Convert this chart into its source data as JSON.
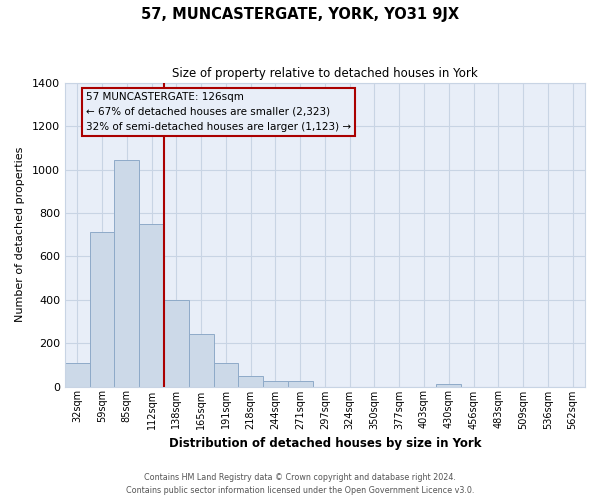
{
  "title": "57, MUNCASTERGATE, YORK, YO31 9JX",
  "subtitle": "Size of property relative to detached houses in York",
  "xlabel": "Distribution of detached houses by size in York",
  "ylabel": "Number of detached properties",
  "bar_color": "#ccd9e8",
  "bar_edge_color": "#8eaac8",
  "vline_color": "#aa0000",
  "categories": [
    "32sqm",
    "59sqm",
    "85sqm",
    "112sqm",
    "138sqm",
    "165sqm",
    "191sqm",
    "218sqm",
    "244sqm",
    "271sqm",
    "297sqm",
    "324sqm",
    "350sqm",
    "377sqm",
    "403sqm",
    "430sqm",
    "456sqm",
    "483sqm",
    "509sqm",
    "536sqm",
    "562sqm"
  ],
  "values": [
    107,
    715,
    1047,
    750,
    400,
    244,
    110,
    48,
    27,
    25,
    0,
    0,
    0,
    0,
    0,
    10,
    0,
    0,
    0,
    0,
    0
  ],
  "ylim": [
    0,
    1400
  ],
  "yticks": [
    0,
    200,
    400,
    600,
    800,
    1000,
    1200,
    1400
  ],
  "annotation_title": "57 MUNCASTERGATE: 126sqm",
  "annotation_line1": "← 67% of detached houses are smaller (2,323)",
  "annotation_line2": "32% of semi-detached houses are larger (1,123) →",
  "footer1": "Contains HM Land Registry data © Crown copyright and database right 2024.",
  "footer2": "Contains public sector information licensed under the Open Government Licence v3.0.",
  "grid_color": "#c8d4e4",
  "plot_bg_color": "#e8eef8",
  "fig_bg_color": "#ffffff"
}
